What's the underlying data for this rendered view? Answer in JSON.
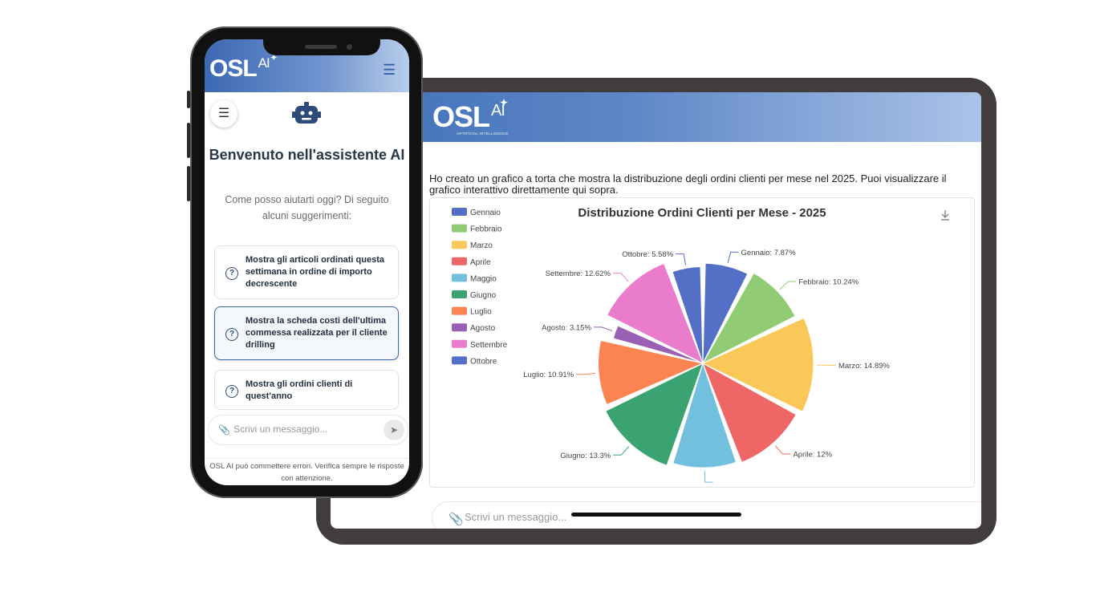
{
  "tablet": {
    "logo": {
      "main": "OSL",
      "ai": "AI",
      "tagline": "ARTIFICIAL INTELLIGENCE"
    },
    "message": "Ho creato un grafico a torta che mostra la distribuzione degli ordini clienti per mese nel 2025. Puoi visualizzare il grafico interattivo direttamente qui sopra.",
    "input_placeholder": "Scrivi un messaggio...",
    "icons": {
      "attach": "paperclip-icon",
      "download": "download-icon"
    }
  },
  "chart_data": {
    "type": "pie",
    "title": "Distribuzione Ordini Clienti per Mese - 2025",
    "legend_position": "top-left",
    "categories": [
      "Gennaio",
      "Febbraio",
      "Marzo",
      "Aprile",
      "Maggio",
      "Giugno",
      "Luglio",
      "Agosto",
      "Settembre",
      "Ottobre"
    ],
    "values": [
      7.87,
      10.24,
      14.89,
      12,
      10.7,
      13.3,
      10.91,
      3.15,
      12.62,
      5.58
    ],
    "data_labels": [
      "Gennaio: 7.87%",
      "Febbraio: 10.24%",
      "Marzo: 14.89%",
      "Aprile: 12%",
      "",
      "Giugno: 13.3%",
      "Luglio: 10.91%",
      "Agosto: 3.15%",
      "Settembre: 12.62%",
      "Ottobre: 5.58%"
    ],
    "colors": [
      "#5470c6",
      "#91cc75",
      "#fac858",
      "#ee6666",
      "#73c0de",
      "#3ba272",
      "#fc8452",
      "#9a60b4",
      "#ea7ccc",
      "#5470c6"
    ]
  },
  "phone": {
    "logo": {
      "main": "OSL",
      "ai": "AI"
    },
    "title": "Benvenuto nell'assistente AI",
    "subtitle": "Come posso aiutarti oggi? Di seguito alcuni suggerimenti:",
    "suggestions": [
      "Mostra gli articoli ordinati questa settimana in ordine di importo decrescente",
      "Mostra la scheda costi dell'ultima commessa realizzata per il cliente drilling",
      "Mostra gli ordini clienti di quest'anno"
    ],
    "input_placeholder": "Scrivi un messaggio...",
    "disclaimer": "OSL AI può commettere errori. Verifica sempre le risposte con attenzione.",
    "icons": {
      "menu": "hamburger-icon",
      "bot": "robot-icon",
      "help": "question-circle-icon",
      "send": "send-icon"
    }
  }
}
